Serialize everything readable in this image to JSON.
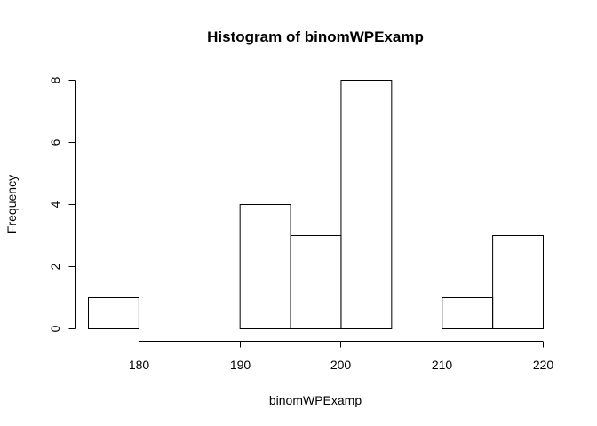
{
  "chart_data": {
    "type": "bar",
    "title": "Histogram of binomWPExamp",
    "xlabel": "binomWPExamp",
    "ylabel": "Frequency",
    "bins": [
      {
        "start": 175,
        "end": 180,
        "count": 1
      },
      {
        "start": 180,
        "end": 185,
        "count": 0
      },
      {
        "start": 185,
        "end": 190,
        "count": 0
      },
      {
        "start": 190,
        "end": 195,
        "count": 4
      },
      {
        "start": 195,
        "end": 200,
        "count": 3
      },
      {
        "start": 200,
        "end": 205,
        "count": 8
      },
      {
        "start": 205,
        "end": 210,
        "count": 0
      },
      {
        "start": 210,
        "end": 215,
        "count": 1
      },
      {
        "start": 215,
        "end": 220,
        "count": 3
      }
    ],
    "xticks": [
      180,
      190,
      200,
      210,
      220
    ],
    "yticks": [
      0,
      2,
      4,
      6,
      8
    ],
    "xlim": [
      175,
      220
    ],
    "ylim": [
      0,
      8
    ],
    "grid": false
  }
}
